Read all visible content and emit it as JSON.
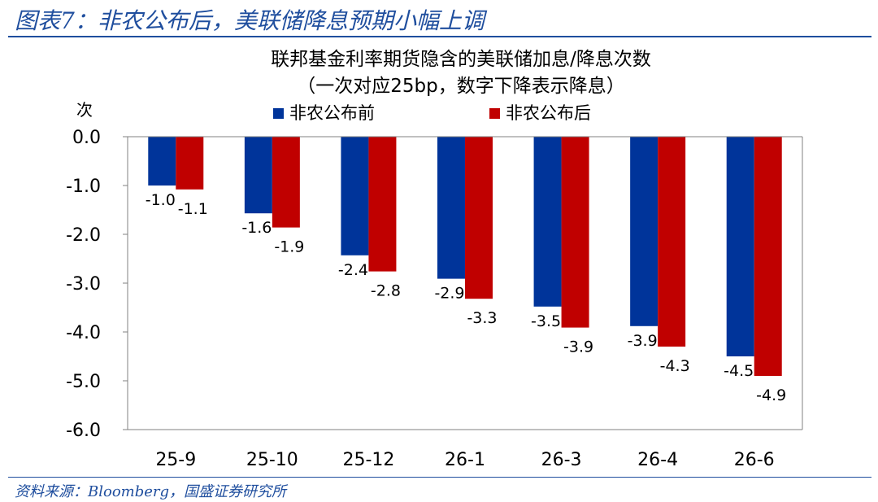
{
  "figure": {
    "title": "图表7：非农公布后，美联储降息预期小幅上调",
    "source": "资料来源：Bloomberg，国盛证券研究所",
    "accent_color": "#1F4E9E"
  },
  "chart_data": {
    "type": "bar",
    "title": "联邦基金利率期货隐含的美联储加息/降息次数",
    "subtitle": "（一次对应25bp，数字下降表示降息）",
    "ylabel": "次",
    "xlabel": "",
    "categories": [
      "25-9",
      "25-10",
      "25-12",
      "26-1",
      "26-3",
      "26-4",
      "26-6"
    ],
    "series": [
      {
        "name": "非农公布前",
        "color": "#00349A",
        "values": [
          -1.0,
          -1.57,
          -2.43,
          -2.91,
          -3.48,
          -3.88,
          -4.5
        ],
        "labels": [
          "-1.0",
          "-1.6",
          "-2.4",
          "-2.9",
          "-3.5",
          "-3.9",
          "-4.5"
        ]
      },
      {
        "name": "非农公布后",
        "color": "#C00000",
        "values": [
          -1.08,
          -1.86,
          -2.76,
          -3.32,
          -3.91,
          -4.3,
          -4.9
        ],
        "labels": [
          "-1.1",
          "-1.9",
          "-2.8",
          "-3.3",
          "-3.9",
          "-4.3",
          "-4.9"
        ]
      }
    ],
    "ylim": [
      -6.0,
      0.0
    ],
    "yticks": [
      0.0,
      -1.0,
      -2.0,
      -3.0,
      -4.0,
      -5.0,
      -6.0
    ],
    "ytick_labels": [
      "0.0",
      "-1.0",
      "-2.0",
      "-3.0",
      "-4.0",
      "-5.0",
      "-6.0"
    ],
    "grid": false,
    "legend_position": "top"
  }
}
